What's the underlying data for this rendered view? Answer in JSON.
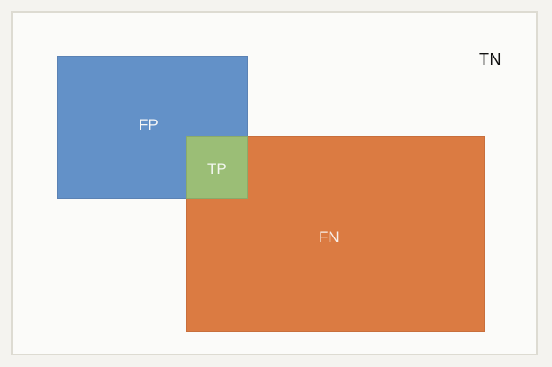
{
  "diagram": {
    "labels": {
      "tn": "TN",
      "fp": "FP",
      "tp": "TP",
      "fn": "FN"
    },
    "colors": {
      "background": "#fbfbf9",
      "fp": "#6391c8",
      "tp": "#9bbe76",
      "fn": "#db7b42",
      "tn_text": "#111111"
    }
  }
}
